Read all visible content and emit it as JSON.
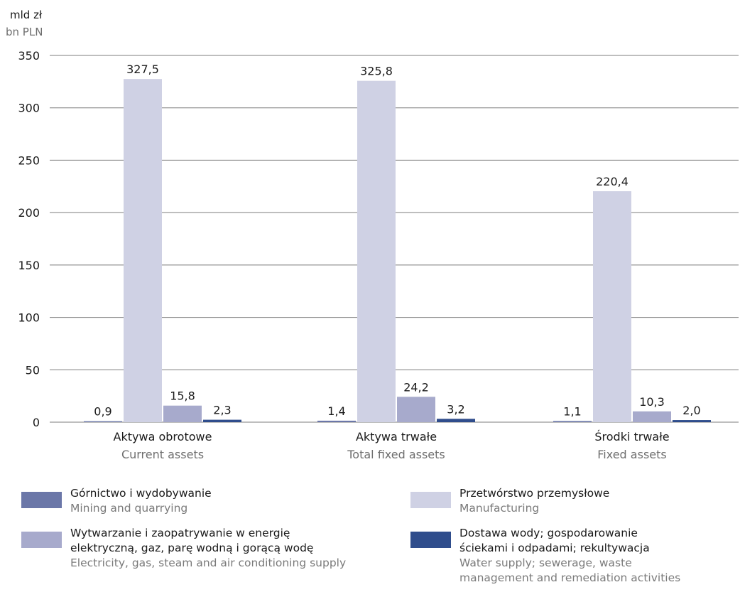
{
  "unit": {
    "pl": "mld zł",
    "en": "bn PLN"
  },
  "colors": {
    "series": [
      "#6b77a8",
      "#cfd1e4",
      "#a7aacc",
      "#2f4d8c"
    ],
    "grid": "#7d7d7d"
  },
  "chart_data": {
    "type": "bar",
    "categories": [
      {
        "pl": "Aktywa obrotowe",
        "en": "Current assets"
      },
      {
        "pl": "Aktywa trwałe",
        "en": "Total fixed assets"
      },
      {
        "pl": "Środki trwałe",
        "en": "Fixed assets"
      }
    ],
    "series": [
      {
        "name_pl": "Górnictwo i wydobywanie",
        "name_en": "Mining and quarrying",
        "values": [
          0.9,
          1.4,
          1.1
        ],
        "labels": [
          "0,9",
          "1,4",
          "1,1"
        ]
      },
      {
        "name_pl": "Przetwórstwo przemysłowe",
        "name_en": "Manufacturing",
        "values": [
          327.5,
          325.8,
          220.4
        ],
        "labels": [
          "327,5",
          "325,8",
          "220,4"
        ]
      },
      {
        "name_pl": "Wytwarzanie i zaopatrywanie w energię elektryczną, gaz, parę wodną i gorącą wodę",
        "name_en": "Electricity, gas, steam and air conditioning supply",
        "values": [
          15.8,
          24.2,
          10.3
        ],
        "labels": [
          "15,8",
          "24,2",
          "10,3"
        ]
      },
      {
        "name_pl": "Dostawa wody; gospodarowanie ściekami i odpadami; rekultywacja",
        "name_en": "Water supply; sewerage, waste management and remediation activities",
        "values": [
          2.3,
          3.2,
          2.0
        ],
        "labels": [
          "2,3",
          "3,2",
          "2,0"
        ]
      }
    ],
    "yticks": [
      0,
      50,
      100,
      150,
      200,
      250,
      300,
      350
    ],
    "ylim": [
      0,
      350
    ],
    "grid": true,
    "legend_position": "bottom"
  },
  "legend": [
    {
      "pl": "Górnictwo i wydobywanie",
      "en": "Mining and quarrying",
      "color": "#6b77a8"
    },
    {
      "pl": "Przetwórstwo przemysłowe",
      "en": "Manufacturing",
      "color": "#cfd1e4"
    },
    {
      "pl": "Wytwarzanie i zaopatrywanie w energię\nelektryczną, gaz, parę wodną i gorącą wodę",
      "en": "Electricity, gas, steam and air conditioning supply",
      "color": "#a7aacc"
    },
    {
      "pl": "Dostawa wody; gospodarowanie\nściekami i odpadami; rekultywacja",
      "en": "Water supply; sewerage, waste\nmanagement and remediation activities",
      "color": "#2f4d8c"
    }
  ]
}
